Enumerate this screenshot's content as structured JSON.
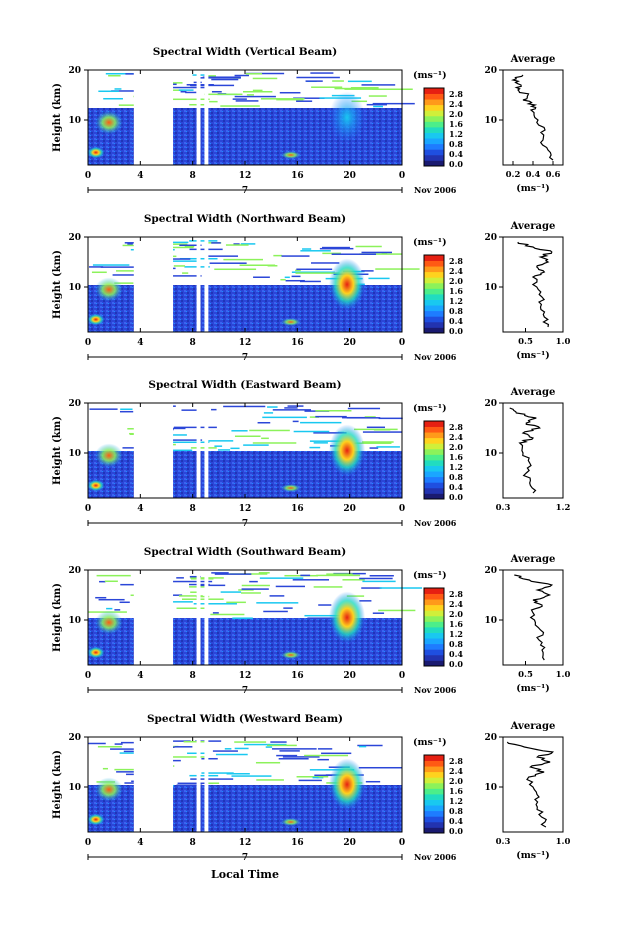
{
  "figure": {
    "colorbar_unit": "(ms⁻¹)",
    "colorbar_ticks": [
      "0.0",
      "0.4",
      "0.8",
      "1.2",
      "1.6",
      "2.0",
      "2.4",
      "2.8"
    ],
    "colorbar_colors": [
      "#1a1a70",
      "#2233b0",
      "#1f4fe0",
      "#1e7cff",
      "#1aa6ff",
      "#19c8f0",
      "#21dcc0",
      "#4cee8a",
      "#8cf25a",
      "#d0ef3a",
      "#ffd21e",
      "#ff9a1a",
      "#ff5a14",
      "#e62012"
    ],
    "x_ticks": [
      "0",
      "4",
      "8",
      "12",
      "16",
      "20",
      "0"
    ],
    "y_ticks": [
      "20",
      "10"
    ],
    "ylabel": "Height (km)",
    "date_label": "7",
    "month_label": "Nov 2006",
    "avg_title": "Average",
    "avg_unit": "(ms⁻¹)",
    "xlabel": "Local Time"
  },
  "chart_data": [
    {
      "type": "heatmap",
      "title": "Spectral Width (Vertical Beam)",
      "xlabel": "Local Time",
      "ylabel": "Height (km)",
      "x_range_hours": [
        0,
        24
      ],
      "y_range_km": [
        1,
        20
      ],
      "colorbar_range": [
        0.0,
        2.8
      ],
      "data_gaps_hours": [
        [
          3.5,
          6.5
        ],
        [
          8.3,
          8.6
        ],
        [
          8.9,
          9.2
        ]
      ],
      "average_profile": {
        "xlabel": "(ms⁻¹)",
        "x_ticks": [
          "0.2",
          "0.4",
          "0.6"
        ],
        "x_range": [
          0.1,
          0.7
        ],
        "heights_km": [
          2,
          4,
          6,
          8,
          10,
          12,
          13,
          14,
          15,
          16,
          17,
          18,
          19
        ],
        "values": [
          0.6,
          0.55,
          0.5,
          0.52,
          0.45,
          0.38,
          0.42,
          0.3,
          0.35,
          0.25,
          0.28,
          0.2,
          0.3
        ]
      }
    },
    {
      "type": "heatmap",
      "title": "Spectral Width (Northward Beam)",
      "xlabel": "Local Time",
      "ylabel": "Height (km)",
      "x_range_hours": [
        0,
        24
      ],
      "y_range_km": [
        1,
        20
      ],
      "colorbar_range": [
        0.0,
        2.8
      ],
      "data_gaps_hours": [
        [
          3.5,
          6.5
        ],
        [
          8.3,
          8.6
        ],
        [
          8.9,
          9.2
        ]
      ],
      "average_profile": {
        "xlabel": "(ms⁻¹)",
        "x_ticks": [
          "0.5",
          "1.0"
        ],
        "x_range": [
          0.2,
          1.0
        ],
        "heights_km": [
          2,
          4,
          6,
          8,
          10,
          12,
          13,
          14,
          15,
          16,
          17,
          18,
          19
        ],
        "values": [
          0.8,
          0.75,
          0.7,
          0.72,
          0.65,
          0.6,
          0.75,
          0.65,
          0.8,
          0.7,
          0.85,
          0.6,
          0.4
        ]
      }
    },
    {
      "type": "heatmap",
      "title": "Spectral Width (Eastward Beam)",
      "xlabel": "Local Time",
      "ylabel": "Height (km)",
      "x_range_hours": [
        0,
        24
      ],
      "y_range_km": [
        1,
        20
      ],
      "colorbar_range": [
        0.0,
        2.8
      ],
      "data_gaps_hours": [
        [
          3.5,
          6.5
        ],
        [
          8.3,
          8.6
        ],
        [
          8.9,
          9.2
        ]
      ],
      "average_profile": {
        "xlabel": "",
        "x_ticks": [
          "0.3",
          "1.2"
        ],
        "x_range": [
          0.3,
          1.2
        ],
        "heights_km": [
          2,
          4,
          6,
          8,
          10,
          12,
          13,
          14,
          15,
          16,
          17,
          18,
          19
        ],
        "values": [
          0.75,
          0.7,
          0.65,
          0.7,
          0.6,
          0.55,
          0.75,
          0.6,
          0.85,
          0.65,
          0.8,
          0.5,
          0.4
        ]
      }
    },
    {
      "type": "heatmap",
      "title": "Spectral Width (Southward Beam)",
      "xlabel": "Local Time",
      "ylabel": "Height (km)",
      "x_range_hours": [
        0,
        24
      ],
      "y_range_km": [
        1,
        20
      ],
      "colorbar_range": [
        0.0,
        2.8
      ],
      "data_gaps_hours": [
        [
          3.5,
          6.5
        ],
        [
          8.3,
          8.6
        ],
        [
          8.9,
          9.2
        ]
      ],
      "average_profile": {
        "xlabel": "(ms⁻¹)",
        "x_ticks": [
          "0.5",
          "1.0"
        ],
        "x_range": [
          0.2,
          1.0
        ],
        "heights_km": [
          2,
          4,
          6,
          8,
          10,
          12,
          13,
          14,
          15,
          16,
          17,
          18,
          19
        ],
        "values": [
          0.75,
          0.72,
          0.68,
          0.7,
          0.62,
          0.58,
          0.72,
          0.6,
          0.82,
          0.66,
          0.85,
          0.55,
          0.35
        ]
      }
    },
    {
      "type": "heatmap",
      "title": "Spectral Width (Westward Beam)",
      "xlabel": "Local Time",
      "ylabel": "Height (km)",
      "x_range_hours": [
        0,
        24
      ],
      "y_range_km": [
        1,
        20
      ],
      "colorbar_range": [
        0.0,
        2.8
      ],
      "data_gaps_hours": [
        [
          3.5,
          6.5
        ],
        [
          8.3,
          8.6
        ],
        [
          8.9,
          9.2
        ]
      ],
      "average_profile": {
        "xlabel": "(ms⁻¹)",
        "x_ticks": [
          "0.3",
          "1.0"
        ],
        "x_range": [
          0.3,
          1.0
        ],
        "heights_km": [
          2,
          4,
          6,
          8,
          10,
          12,
          13,
          14,
          15,
          16,
          17,
          18,
          19
        ],
        "values": [
          0.8,
          0.75,
          0.7,
          0.72,
          0.65,
          0.6,
          0.78,
          0.62,
          0.85,
          0.7,
          0.88,
          0.55,
          0.35
        ]
      }
    }
  ]
}
